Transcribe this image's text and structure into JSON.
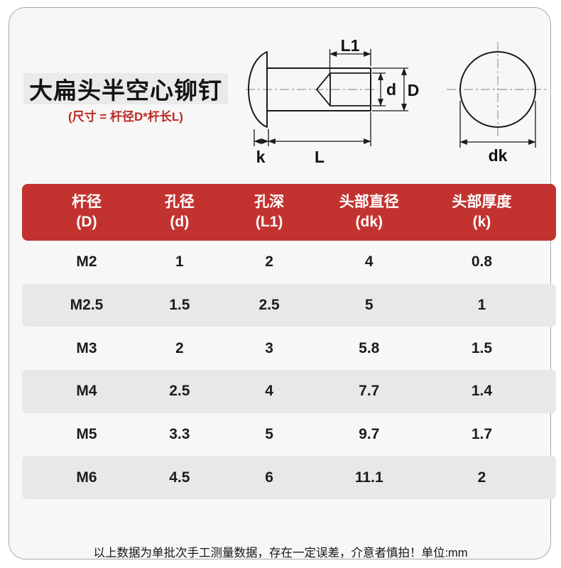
{
  "header": {
    "title": "大扁头半空心铆钉",
    "subtitle": "(尺寸 = 杆径D*杆长L)"
  },
  "diagram": {
    "labels": {
      "L1": "L1",
      "d": "d",
      "D": "D",
      "k": "k",
      "L": "L",
      "dk": "dk"
    }
  },
  "table": {
    "columns": [
      {
        "name": "杆径",
        "symbol": "(D)"
      },
      {
        "name": "孔径",
        "symbol": "(d)"
      },
      {
        "name": "孔深",
        "symbol": "(L1)"
      },
      {
        "name": "头部直径",
        "symbol": "(dk)"
      },
      {
        "name": "头部厚度",
        "symbol": "(k)"
      }
    ],
    "rows": [
      [
        "M2",
        "1",
        "2",
        "4",
        "0.8"
      ],
      [
        "M2.5",
        "1.5",
        "2.5",
        "5",
        "1"
      ],
      [
        "M3",
        "2",
        "3",
        "5.8",
        "1.5"
      ],
      [
        "M4",
        "2.5",
        "4",
        "7.7",
        "1.4"
      ],
      [
        "M5",
        "3.3",
        "5",
        "9.7",
        "1.7"
      ],
      [
        "M6",
        "4.5",
        "6",
        "11.1",
        "2"
      ]
    ]
  },
  "footer": {
    "note": "以上数据为单批次手工测量数据，存在一定误差，介意者慎拍！单位:mm"
  },
  "colors": {
    "header_red": "#c23330",
    "row_alt_gray": "#e8e8e9",
    "card_bg": "#f7f7f7",
    "title_box_bg": "#eaeaeb",
    "subtitle_red": "#b92b24",
    "line_black": "#1a1a1a",
    "centerline_gray": "#9a9a9a",
    "header_text": "#ffffff"
  }
}
